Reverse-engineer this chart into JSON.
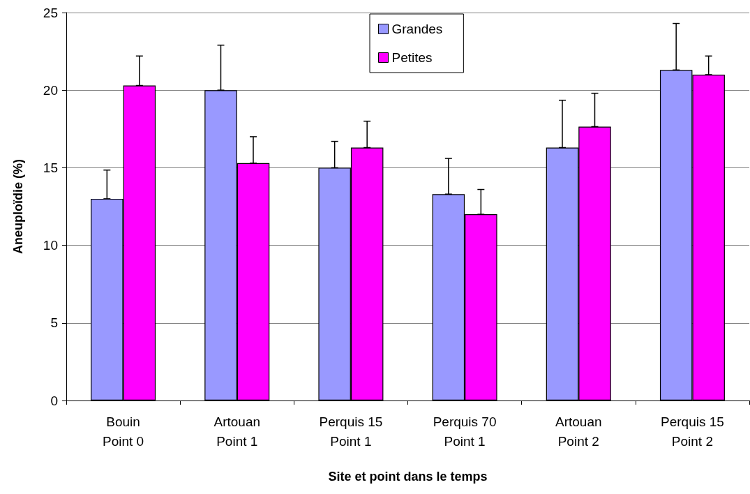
{
  "chart_data": {
    "type": "bar",
    "xlabel": "Site et point dans le temps",
    "ylabel": "Aneuploïdie (%)",
    "categories": [
      "Bouin\nPoint 0",
      "Artouan\nPoint 1",
      "Perquis 15\nPoint 1",
      "Perquis 70\nPoint 1",
      "Artouan\nPoint 2",
      "Perquis 15\nPoint 2"
    ],
    "series": [
      {
        "name": "Grandes",
        "color": "#9999ff",
        "values": [
          13,
          20,
          15,
          13.3,
          16.3,
          21.3
        ],
        "errors": [
          [
            13,
            14.85
          ],
          [
            20,
            22.9
          ],
          [
            15,
            16.7
          ],
          [
            13.3,
            15.6
          ],
          [
            16.3,
            19.35
          ],
          [
            21.3,
            24.3
          ]
        ]
      },
      {
        "name": "Petites",
        "color": "#ff00ff",
        "values": [
          20.3,
          15.3,
          16.3,
          12,
          17.65,
          21
        ],
        "errors": [
          [
            20.3,
            22.2
          ],
          [
            15.3,
            17
          ],
          [
            16.3,
            18
          ],
          [
            12,
            13.6
          ],
          [
            17.65,
            19.8
          ],
          [
            21,
            22.2
          ]
        ]
      }
    ],
    "ylim": [
      0,
      25
    ],
    "yticks": [
      0,
      5,
      10,
      15,
      20,
      25
    ],
    "grid": "y",
    "legend": "top"
  }
}
